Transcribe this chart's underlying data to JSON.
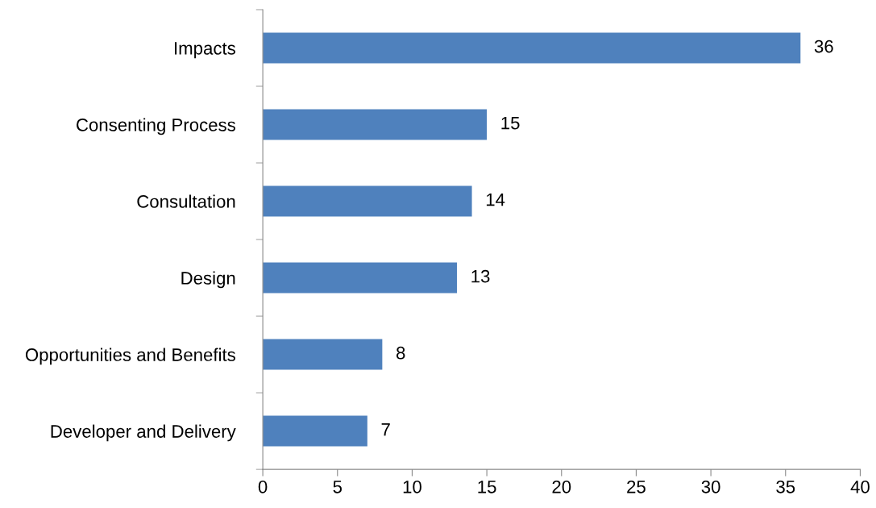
{
  "chart_data": {
    "type": "bar",
    "orientation": "horizontal",
    "categories": [
      "Impacts",
      "Consenting Process",
      "Consultation",
      "Design",
      "Opportunities and Benefits",
      "Developer and Delivery"
    ],
    "values": [
      36,
      15,
      14,
      13,
      8,
      7
    ],
    "color": "#4f81bd",
    "xlim": [
      0,
      40
    ],
    "xticks": [
      0,
      5,
      10,
      15,
      20,
      25,
      30,
      35,
      40
    ],
    "data_labels": true,
    "grid": false,
    "legend": false
  }
}
